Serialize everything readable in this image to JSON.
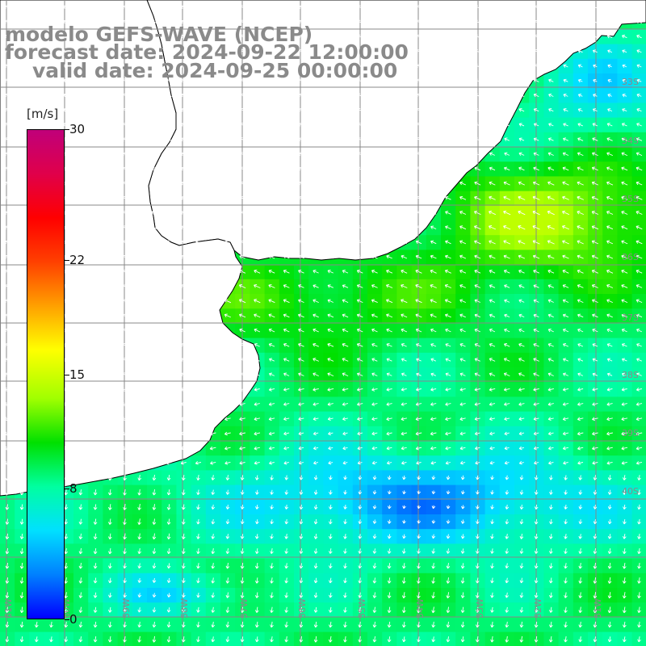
{
  "header": {
    "line1": "modelo GEFS-WAVE (NCEP)",
    "line2": "forecast date: 2024-09-22 12:00:00",
    "line3": "valid date: 2024-09-25 00:00:00"
  },
  "colorbar": {
    "unit": "[m/s]",
    "ticks": [
      "30",
      "22",
      "15",
      "8",
      "0"
    ],
    "tick_values": [
      30,
      22,
      15,
      8,
      0
    ],
    "range": [
      0,
      30
    ],
    "colors": [
      "#0000ff",
      "#0080ff",
      "#00e0ff",
      "#00ffa0",
      "#00e000",
      "#a0ff00",
      "#ffff00",
      "#ffa000",
      "#ff4000",
      "#ff0000",
      "#e0004a",
      "#c0007a"
    ]
  },
  "map": {
    "lat_labels": [
      "33S",
      "34S",
      "35S",
      "36S",
      "37S",
      "38S",
      "39S",
      "40S"
    ],
    "lon_labels": [
      "61W",
      "60W",
      "59W",
      "58W",
      "57W",
      "56W",
      "55W",
      "54W",
      "53W",
      "52W",
      "51W"
    ],
    "land_color": "#ffffff",
    "grid_color": "#888888",
    "arrow_color": "#ffffff"
  }
}
